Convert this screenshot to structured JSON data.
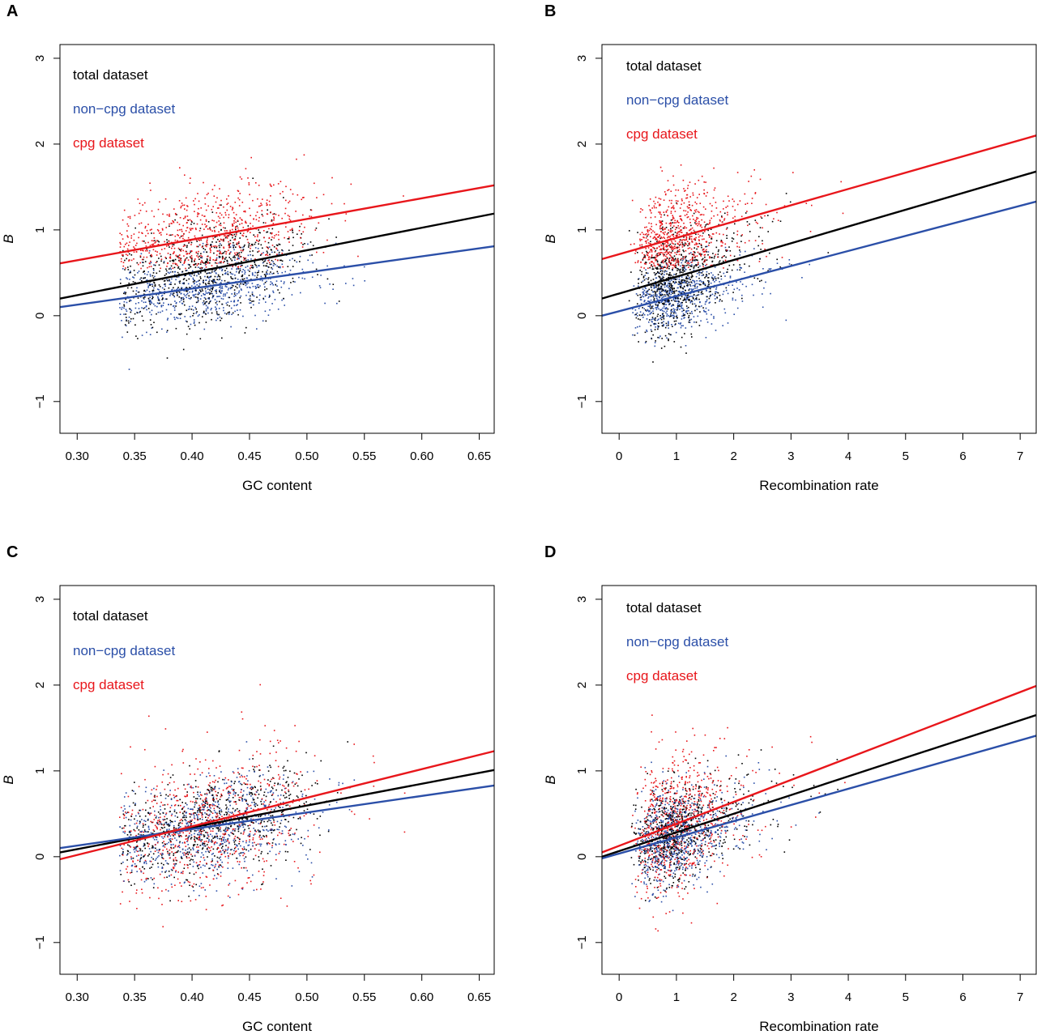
{
  "colors": {
    "total": "#000000",
    "noncpg": "#2b4fa8",
    "cpg": "#e8161b"
  },
  "chart_data": [
    {
      "panel": "A",
      "type": "scatter",
      "xlabel": "GC content",
      "ylabel": "B",
      "xlim": [
        0.285,
        0.663
      ],
      "ylim": [
        -1.37,
        3.16
      ],
      "xticks": [
        0.3,
        0.35,
        0.4,
        0.45,
        0.5,
        0.55,
        0.6,
        0.65
      ],
      "xtick_labels": [
        "0.30",
        "0.35",
        "0.40",
        "0.45",
        "0.50",
        "0.55",
        "0.60",
        "0.65"
      ],
      "yticks": [
        -1,
        0,
        1,
        2,
        3
      ],
      "ytick_labels": [
        "−1",
        "0",
        "1",
        "2",
        "3"
      ],
      "legend": [
        "total dataset",
        "non−cpg dataset",
        "cpg dataset"
      ],
      "legend_position": "top-left",
      "regression_lines": [
        {
          "series": "total dataset",
          "x": [
            0.285,
            0.663
          ],
          "y": [
            0.2,
            1.19
          ]
        },
        {
          "series": "non−cpg dataset",
          "x": [
            0.285,
            0.663
          ],
          "y": [
            0.1,
            0.81
          ]
        },
        {
          "series": "cpg dataset",
          "x": [
            0.285,
            0.663
          ],
          "y": [
            0.61,
            1.52
          ]
        }
      ]
    },
    {
      "panel": "B",
      "type": "scatter",
      "xlabel": "Recombination rate",
      "ylabel": "B",
      "xlim": [
        -0.3,
        7.28
      ],
      "ylim": [
        -1.37,
        3.16
      ],
      "xticks": [
        0,
        1,
        2,
        3,
        4,
        5,
        6,
        7
      ],
      "xtick_labels": [
        "0",
        "1",
        "2",
        "3",
        "4",
        "5",
        "6",
        "7"
      ],
      "yticks": [
        -1,
        0,
        1,
        2,
        3
      ],
      "ytick_labels": [
        "−1",
        "0",
        "1",
        "2",
        "3"
      ],
      "legend": [
        "total dataset",
        "non−cpg dataset",
        "cpg dataset"
      ],
      "legend_position": "top-left",
      "regression_lines": [
        {
          "series": "total dataset",
          "x": [
            -0.3,
            7.28
          ],
          "y": [
            0.2,
            1.68
          ]
        },
        {
          "series": "non−cpg dataset",
          "x": [
            -0.3,
            7.28
          ],
          "y": [
            0.0,
            1.33
          ]
        },
        {
          "series": "cpg dataset",
          "x": [
            -0.3,
            7.28
          ],
          "y": [
            0.66,
            2.1
          ]
        }
      ]
    },
    {
      "panel": "C",
      "type": "scatter",
      "xlabel": "GC content",
      "ylabel": "B",
      "xlim": [
        0.285,
        0.663
      ],
      "ylim": [
        -1.37,
        3.16
      ],
      "xticks": [
        0.3,
        0.35,
        0.4,
        0.45,
        0.5,
        0.55,
        0.6,
        0.65
      ],
      "xtick_labels": [
        "0.30",
        "0.35",
        "0.40",
        "0.45",
        "0.50",
        "0.55",
        "0.60",
        "0.65"
      ],
      "yticks": [
        -1,
        0,
        1,
        2,
        3
      ],
      "ytick_labels": [
        "−1",
        "0",
        "1",
        "2",
        "3"
      ],
      "legend": [
        "total dataset",
        "non−cpg dataset",
        "cpg dataset"
      ],
      "legend_position": "top-left",
      "regression_lines": [
        {
          "series": "total dataset",
          "x": [
            0.285,
            0.663
          ],
          "y": [
            0.05,
            1.01
          ]
        },
        {
          "series": "non−cpg dataset",
          "x": [
            0.285,
            0.663
          ],
          "y": [
            0.1,
            0.83
          ]
        },
        {
          "series": "cpg dataset",
          "x": [
            0.285,
            0.663
          ],
          "y": [
            -0.03,
            1.23
          ]
        }
      ]
    },
    {
      "panel": "D",
      "type": "scatter",
      "xlabel": "Recombination rate",
      "ylabel": "B",
      "xlim": [
        -0.3,
        7.28
      ],
      "ylim": [
        -1.37,
        3.16
      ],
      "xticks": [
        0,
        1,
        2,
        3,
        4,
        5,
        6,
        7
      ],
      "xtick_labels": [
        "0",
        "1",
        "2",
        "3",
        "4",
        "5",
        "6",
        "7"
      ],
      "yticks": [
        -1,
        0,
        1,
        2,
        3
      ],
      "ytick_labels": [
        "−1",
        "0",
        "1",
        "2",
        "3"
      ],
      "legend": [
        "total dataset",
        "non−cpg dataset",
        "cpg dataset"
      ],
      "legend_position": "top-left",
      "regression_lines": [
        {
          "series": "total dataset",
          "x": [
            -0.3,
            7.28
          ],
          "y": [
            0.0,
            1.65
          ]
        },
        {
          "series": "non−cpg dataset",
          "x": [
            -0.3,
            7.28
          ],
          "y": [
            -0.02,
            1.41
          ]
        },
        {
          "series": "cpg dataset",
          "x": [
            -0.3,
            7.28
          ],
          "y": [
            0.05,
            1.99
          ]
        }
      ]
    }
  ]
}
